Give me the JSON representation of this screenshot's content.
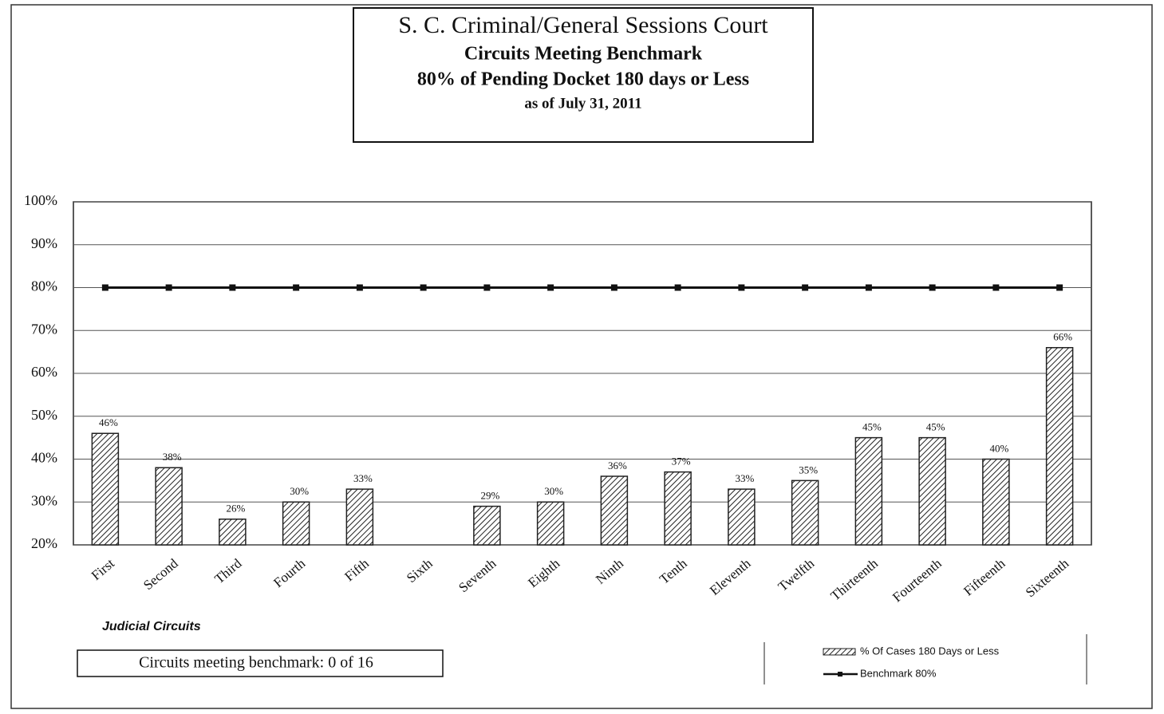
{
  "chart_data": {
    "type": "bar",
    "title": "S. C. Criminal/General Sessions Court",
    "subtitle": [
      "Circuits Meeting Benchmark",
      "80% of Pending Docket 180 days or Less",
      "as of July 31, 2011"
    ],
    "x_label": "Judicial Circuits",
    "annotation": "Circuits meeting benchmark: 0 of 16",
    "categories": [
      "First",
      "Second",
      "Third",
      "Fourth",
      "Fifth",
      "Sixth",
      "Seventh",
      "Eighth",
      "Ninth",
      "Tenth",
      "Eleventh",
      "Twelfth",
      "Thirteenth",
      "Fourteenth",
      "Fifteenth",
      "Sixteenth"
    ],
    "series": [
      {
        "name": "% Of Cases 180 Days or Less",
        "type": "bar",
        "color": "#222222",
        "values": [
          46,
          38,
          26,
          30,
          33,
          null,
          29,
          30,
          36,
          37,
          33,
          35,
          45,
          45,
          40,
          66
        ],
        "value_labels": [
          "46%",
          "38%",
          "26%",
          "30%",
          "33%",
          null,
          "29%",
          "30%",
          "36%",
          "37%",
          "33%",
          "35%",
          "45%",
          "45%",
          "40%",
          "66%"
        ]
      },
      {
        "name": "Benchmark 80%",
        "type": "line",
        "color": "#111111",
        "values": [
          80,
          80,
          80,
          80,
          80,
          80,
          80,
          80,
          80,
          80,
          80,
          80,
          80,
          80,
          80,
          80
        ]
      }
    ],
    "ylim": [
      20,
      100
    ],
    "yticks": [
      {
        "value": 20,
        "label": "20%"
      },
      {
        "value": 30,
        "label": "30%"
      },
      {
        "value": 40,
        "label": "40%"
      },
      {
        "value": 50,
        "label": "50%"
      },
      {
        "value": 60,
        "label": "60%"
      },
      {
        "value": 70,
        "label": "70%"
      },
      {
        "value": 80,
        "label": "80%"
      },
      {
        "value": 90,
        "label": "90%"
      },
      {
        "value": 100,
        "label": "100%"
      }
    ],
    "grid": true,
    "legend": "bottom-right"
  }
}
